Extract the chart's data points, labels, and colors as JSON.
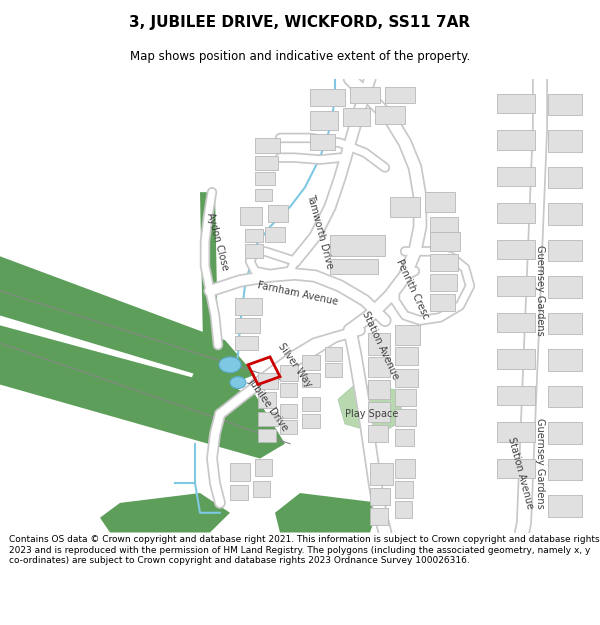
{
  "title": "3, JUBILEE DRIVE, WICKFORD, SS11 7AR",
  "subtitle": "Map shows position and indicative extent of the property.",
  "footer": "Contains OS data © Crown copyright and database right 2021. This information is subject to Crown copyright and database rights 2023 and is reproduced with the permission of HM Land Registry. The polygons (including the associated geometry, namely x, y co-ordinates) are subject to Crown copyright and database rights 2023 Ordnance Survey 100026316.",
  "bg_color": "#f8f8f8",
  "map_bg": "#ffffff",
  "building_color": "#e0e0e0",
  "building_outline": "#c0c0c0",
  "green_dark": "#5d9e5a",
  "green_light": "#b8d8b0",
  "water_color": "#7ec8e3",
  "road_fill": "#ffffff",
  "road_outline": "#c8c8c8",
  "red_property": "#cc0000",
  "label_color": "#404040",
  "title_fontsize": 11,
  "subtitle_fontsize": 8.5,
  "footer_fontsize": 6.5,
  "label_fontsize": 7
}
